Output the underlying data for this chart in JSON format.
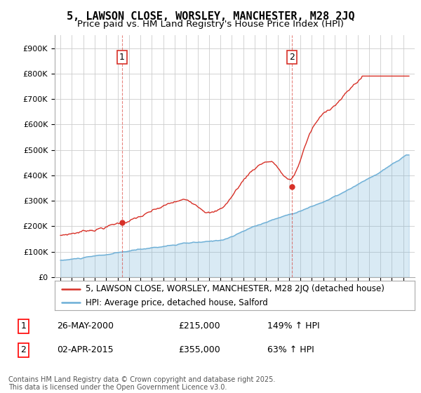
{
  "title": "5, LAWSON CLOSE, WORSLEY, MANCHESTER, M28 2JQ",
  "subtitle": "Price paid vs. HM Land Registry's House Price Index (HPI)",
  "ylim": [
    0,
    950000
  ],
  "yticks": [
    0,
    100000,
    200000,
    300000,
    400000,
    500000,
    600000,
    700000,
    800000,
    900000
  ],
  "ytick_labels": [
    "£0",
    "£100K",
    "£200K",
    "£300K",
    "£400K",
    "£500K",
    "£600K",
    "£700K",
    "£800K",
    "£900K"
  ],
  "hpi_color": "#6baed6",
  "price_color": "#d73027",
  "vline_color": "#d73027",
  "background_color": "#ffffff",
  "grid_color": "#cccccc",
  "legend1_label": "5, LAWSON CLOSE, WORSLEY, MANCHESTER, M28 2JQ (detached house)",
  "legend2_label": "HPI: Average price, detached house, Salford",
  "annotation1_label": "1",
  "annotation1_date": "26-MAY-2000",
  "annotation1_price": "£215,000",
  "annotation1_hpi": "149% ↑ HPI",
  "annotation2_label": "2",
  "annotation2_date": "02-APR-2015",
  "annotation2_price": "£355,000",
  "annotation2_hpi": "63% ↑ HPI",
  "footer": "Contains HM Land Registry data © Crown copyright and database right 2025.\nThis data is licensed under the Open Government Licence v3.0.",
  "title_fontsize": 11,
  "subtitle_fontsize": 9.5,
  "tick_fontsize": 8,
  "legend_fontsize": 8.5,
  "annotation_fontsize": 9,
  "footer_fontsize": 7,
  "vline1_x": 2000.4,
  "vline2_x": 2015.25,
  "sale1_x": 2000.4,
  "sale1_y": 215000,
  "sale2_x": 2015.25,
  "sale2_y": 355000,
  "xlim_left": 1994.5,
  "xlim_right": 2026.0
}
